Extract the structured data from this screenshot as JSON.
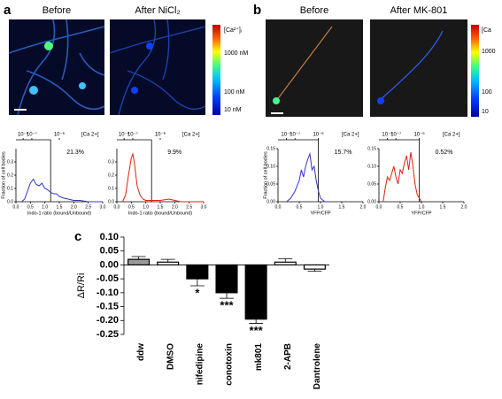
{
  "panel_labels": [
    "a",
    "b",
    "c"
  ],
  "images": [
    {
      "title": "Before"
    },
    {
      "title": "After NiCl₂"
    },
    {
      "title": "Before"
    },
    {
      "title": "After MK-801"
    }
  ],
  "colorbars": [
    {
      "labels": [
        "[Ca²⁺]ᵢ",
        "1000 nM",
        "100 nM",
        "10 nM"
      ]
    },
    {
      "labels": [
        "[Ca",
        "1000",
        "100",
        "10"
      ]
    }
  ],
  "chart_data": [
    {
      "type": "line",
      "x_label": "Indo-1 ratio (bound/Unbound)",
      "y_label": "Fraction of cell bodies",
      "x2_label": "[Ca 2+]",
      "x2_tick_labels": [
        "10⁻⁸",
        "10⁻⁷",
        "10⁻⁶"
      ],
      "x": [
        0.2,
        0.3,
        0.4,
        0.5,
        0.6,
        0.7,
        0.8,
        0.9,
        1.0,
        1.1,
        1.2,
        1.3,
        1.4,
        1.5,
        1.6,
        1.8,
        2.0,
        2.2,
        2.5,
        3.0
      ],
      "series": [
        {
          "color": "#3333cc",
          "values": [
            0,
            0.02,
            0.08,
            0.14,
            0.17,
            0.13,
            0.12,
            0.14,
            0.1,
            0.09,
            0.07,
            0.06,
            0.06,
            0.04,
            0.03,
            0.02,
            0.01,
            0.01,
            0,
            0
          ]
        }
      ],
      "xlim": [
        0,
        3
      ],
      "xticks": [
        {
          "value": 0,
          "label": "0.0"
        },
        0.5,
        {
          "value": 1,
          "label": "1.0"
        },
        1.5,
        {
          "value": 2,
          "label": "2.0"
        },
        2.5,
        {
          "value": 3,
          "label": "3.0"
        }
      ],
      "ylim": [
        0,
        0.4
      ],
      "yticks": [
        {
          "value": 0,
          "label": "0.0"
        },
        0.1,
        0.2,
        0.3
      ],
      "threshold": 1.2,
      "annotation": "21.3%"
    },
    {
      "type": "line",
      "x_label": "Indo-1 ratio (bound/Unbound)",
      "x2_label": "[Ca 2+]",
      "x2_tick_labels": [
        "10⁻⁸",
        "10⁻⁷",
        "10⁻⁶"
      ],
      "x": [
        0.2,
        0.3,
        0.4,
        0.5,
        0.55,
        0.6,
        0.7,
        0.8,
        0.9,
        1.0,
        1.2,
        1.5,
        1.8,
        2.0,
        2.2,
        2.5,
        3.0
      ],
      "series": [
        {
          "color": "#e02010",
          "values": [
            0,
            0.05,
            0.2,
            0.33,
            0.36,
            0.3,
            0.12,
            0.05,
            0.02,
            0.01,
            0.01,
            0.01,
            0.02,
            0.01,
            0,
            0,
            0
          ]
        }
      ],
      "xlim": [
        0,
        3
      ],
      "xticks": [
        {
          "value": 0,
          "label": "0.0"
        },
        0.5,
        {
          "value": 1,
          "label": "1.0"
        },
        1.5,
        {
          "value": 2,
          "label": "2.0"
        },
        2.5,
        {
          "value": 3,
          "label": "3.0"
        }
      ],
      "ylim": [
        0,
        0.4
      ],
      "yticks": [
        {
          "value": 0,
          "label": "0.0"
        },
        0.1,
        0.2,
        0.3
      ],
      "threshold": 1.2,
      "annotation": "9.9%"
    },
    {
      "type": "line",
      "x_label": "YFP/CFP",
      "y_label": "Fraction of cell bodies",
      "x2_label": "[Ca 2+]",
      "x2_tick_labels": [
        "10⁻⁸",
        "10⁻⁷",
        "10⁻⁶"
      ],
      "x": [
        0.2,
        0.3,
        0.4,
        0.5,
        0.55,
        0.6,
        0.65,
        0.7,
        0.75,
        0.8,
        0.85,
        0.9,
        0.95,
        1.0,
        1.1,
        1.2
      ],
      "series": [
        {
          "color": "#3333cc",
          "values": [
            0,
            0.01,
            0.03,
            0.06,
            0.09,
            0.07,
            0.1,
            0.12,
            0.135,
            0.09,
            0.1,
            0.06,
            0.03,
            0.01,
            0,
            0
          ]
        }
      ],
      "xlim": [
        0,
        2
      ],
      "xticks": [
        {
          "value": 0,
          "label": "0.0"
        },
        0.5,
        {
          "value": 1,
          "label": "1.0"
        },
        1.5,
        {
          "value": 2,
          "label": "2.0"
        }
      ],
      "ylim": [
        0,
        0.15
      ],
      "yticks": [
        {
          "value": 0,
          "label": "0.00"
        },
        0.05,
        {
          "value": 0.1,
          "label": "0.10"
        },
        0.15
      ],
      "threshold": 0.95,
      "annotation": "15.7%"
    },
    {
      "type": "line",
      "x_label": "YFP/CFP",
      "x2_label": "[Ca 2+]",
      "x2_tick_labels": [
        "10⁻⁸",
        "10⁻⁷",
        "10⁻⁶"
      ],
      "x": [
        0.1,
        0.15,
        0.2,
        0.25,
        0.3,
        0.35,
        0.4,
        0.45,
        0.5,
        0.55,
        0.6,
        0.65,
        0.7,
        0.75,
        0.8,
        0.85,
        0.9,
        0.95,
        1.0
      ],
      "series": [
        {
          "color": "#e02010",
          "values": [
            0,
            0.04,
            0.07,
            0.06,
            0.08,
            0.1,
            0.07,
            0.05,
            0.09,
            0.08,
            0.11,
            0.13,
            0.09,
            0.14,
            0.1,
            0.05,
            0.02,
            0.01,
            0
          ]
        }
      ],
      "xlim": [
        0,
        2
      ],
      "xticks": [
        {
          "value": 0,
          "label": "0.0"
        },
        0.5,
        {
          "value": 1,
          "label": "1.0"
        },
        1.5,
        {
          "value": 2,
          "label": "2.0"
        }
      ],
      "ylim": [
        0,
        0.15
      ],
      "yticks": [
        {
          "value": 0,
          "label": "0.00"
        },
        0.05,
        {
          "value": 0.1,
          "label": "0.10"
        },
        0.15
      ],
      "threshold": 0.95,
      "annotation": "0.52%"
    },
    {
      "type": "bar",
      "y_label": "ΔR/Ri",
      "categories": [
        "ddw",
        "DMSO",
        "nifedipine",
        "conotoxin",
        "mk801",
        "2-APB",
        "Dantrolene"
      ],
      "values": [
        0.02,
        0.01,
        -0.05,
        -0.1,
        -0.195,
        0.01,
        -0.015
      ],
      "errors": [
        0.01,
        0.01,
        0.025,
        0.02,
        0.015,
        0.012,
        0.008
      ],
      "colors": [
        "#999999",
        "#ffffff",
        "#000000",
        "#000000",
        "#000000",
        "#ffffff",
        "#ffffff"
      ],
      "significance": [
        null,
        null,
        "*",
        "***",
        "***",
        null,
        null
      ],
      "ylim": [
        -0.25,
        0.1
      ],
      "yticks": [
        {
          "value": 0.1,
          "label": "0.10"
        },
        0.05,
        {
          "value": 0,
          "label": "0.00"
        },
        -0.05,
        {
          "value": -0.1,
          "label": "-0.10"
        },
        -0.15,
        {
          "value": -0.2,
          "label": "-0.20"
        },
        -0.25
      ]
    }
  ]
}
